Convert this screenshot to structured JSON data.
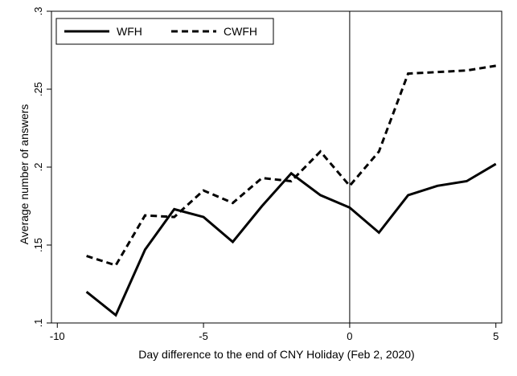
{
  "chart_data": {
    "type": "line",
    "title": "",
    "xlabel": "Day difference to the end of CNY Holiday (Feb 2, 2020)",
    "ylabel": "Average number of answers",
    "xlim": [
      -10.2,
      5.2
    ],
    "ylim": [
      0.1,
      0.3
    ],
    "x_ticks": [
      -10,
      -5,
      0,
      5
    ],
    "x_tick_labels": [
      "-10",
      "-5",
      "0",
      "5"
    ],
    "y_ticks": [
      0.1,
      0.15,
      0.2,
      0.25,
      0.3
    ],
    "y_tick_labels": [
      ".1",
      ".15",
      ".2",
      ".25",
      ".3"
    ],
    "y_tick_labels_rotated": true,
    "reference_line_x": 0,
    "grid": false,
    "legend_position": "top-left",
    "x": [
      -9,
      -8,
      -7,
      -6,
      -5,
      -4,
      -3,
      -2,
      -1,
      0,
      1,
      2,
      3,
      4,
      5
    ],
    "series": [
      {
        "name": "WFH",
        "style": "solid",
        "color": "#000000",
        "values": [
          0.12,
          0.105,
          0.147,
          0.173,
          0.168,
          0.152,
          0.175,
          0.196,
          0.182,
          0.174,
          0.158,
          0.182,
          0.188,
          0.191,
          0.202
        ]
      },
      {
        "name": "CWFH",
        "style": "dashed",
        "color": "#000000",
        "values": [
          0.143,
          0.137,
          0.169,
          0.168,
          0.185,
          0.177,
          0.193,
          0.191,
          0.21,
          0.188,
          0.21,
          0.26,
          0.261,
          0.262,
          0.265
        ]
      }
    ]
  }
}
